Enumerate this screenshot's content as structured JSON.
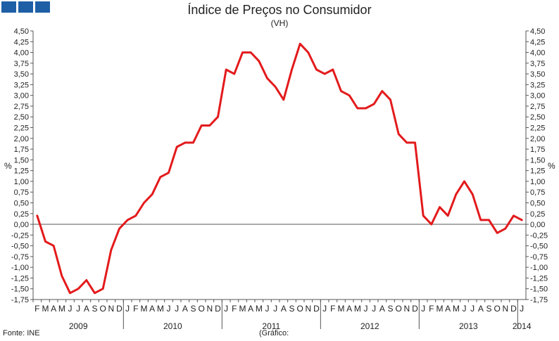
{
  "header": {
    "title": "Índice de Preços no Consumidor",
    "subtitle": "(VH)"
  },
  "footer": {
    "source": "Fonte: INE",
    "note": "(Gráfico:"
  },
  "colors": {
    "line": "#e31a1c",
    "axis": "#555555",
    "logo": "#1f5fa6"
  },
  "chart_data": {
    "type": "line",
    "ylabel_left": "%",
    "ylabel_right": "%",
    "ylim": [
      -1.75,
      4.5
    ],
    "ytick_step": 0.25,
    "ytick_labels": [
      "4,50",
      "4,25",
      "4,00",
      "3,75",
      "3,50",
      "3,25",
      "3,00",
      "2,75",
      "2,50",
      "2,25",
      "2,00",
      "1,75",
      "1,50",
      "1,25",
      "1,00",
      "0,75",
      "0,50",
      "0,25",
      "0,00",
      "-0,25",
      "-0,50",
      "-0,75",
      "-1,00",
      "-1,25",
      "-1,50",
      "-1,75"
    ],
    "month_labels": [
      "F",
      "M",
      "A",
      "M",
      "J",
      "J",
      "A",
      "S",
      "O",
      "N",
      "D",
      "J",
      "F",
      "M",
      "A",
      "M",
      "J",
      "J",
      "A",
      "S",
      "O",
      "N",
      "D",
      "J",
      "F",
      "M",
      "A",
      "M",
      "J",
      "J",
      "A",
      "S",
      "O",
      "N",
      "D",
      "J",
      "F",
      "M",
      "A",
      "M",
      "J",
      "J",
      "A",
      "S",
      "O",
      "N",
      "D",
      "J",
      "F",
      "M",
      "A",
      "M",
      "J",
      "J",
      "A",
      "S",
      "O",
      "N",
      "D",
      "J"
    ],
    "year_labels": [
      "2009",
      "2010",
      "2011",
      "2012",
      "2013",
      "2014"
    ],
    "x": [
      "2009-02",
      "2009-03",
      "2009-04",
      "2009-05",
      "2009-06",
      "2009-07",
      "2009-08",
      "2009-09",
      "2009-10",
      "2009-11",
      "2009-12",
      "2010-01",
      "2010-02",
      "2010-03",
      "2010-04",
      "2010-05",
      "2010-06",
      "2010-07",
      "2010-08",
      "2010-09",
      "2010-10",
      "2010-11",
      "2010-12",
      "2011-01",
      "2011-02",
      "2011-03",
      "2011-04",
      "2011-05",
      "2011-06",
      "2011-07",
      "2011-08",
      "2011-09",
      "2011-10",
      "2011-11",
      "2011-12",
      "2012-01",
      "2012-02",
      "2012-03",
      "2012-04",
      "2012-05",
      "2012-06",
      "2012-07",
      "2012-08",
      "2012-09",
      "2012-10",
      "2012-11",
      "2012-12",
      "2013-01",
      "2013-02",
      "2013-03",
      "2013-04",
      "2013-05",
      "2013-06",
      "2013-07",
      "2013-08",
      "2013-09",
      "2013-10",
      "2013-11",
      "2013-12",
      "2014-01"
    ],
    "series": [
      {
        "values": [
          0.2,
          -0.4,
          -0.5,
          -1.2,
          -1.6,
          -1.5,
          -1.3,
          -1.6,
          -1.5,
          -0.6,
          -0.1,
          0.1,
          0.2,
          0.5,
          0.7,
          1.1,
          1.2,
          1.8,
          1.9,
          1.9,
          2.3,
          2.3,
          2.5,
          3.6,
          3.5,
          4.0,
          4.0,
          3.8,
          3.4,
          3.2,
          2.9,
          3.6,
          4.2,
          4.0,
          3.6,
          3.5,
          3.6,
          3.1,
          3.0,
          2.7,
          2.7,
          2.8,
          3.1,
          2.9,
          2.1,
          1.9,
          1.9,
          0.2,
          0.0,
          0.4,
          0.2,
          0.7,
          1.0,
          0.7,
          0.1,
          0.1,
          -0.2,
          -0.1,
          0.2,
          0.1
        ]
      }
    ],
    "grid": false
  }
}
